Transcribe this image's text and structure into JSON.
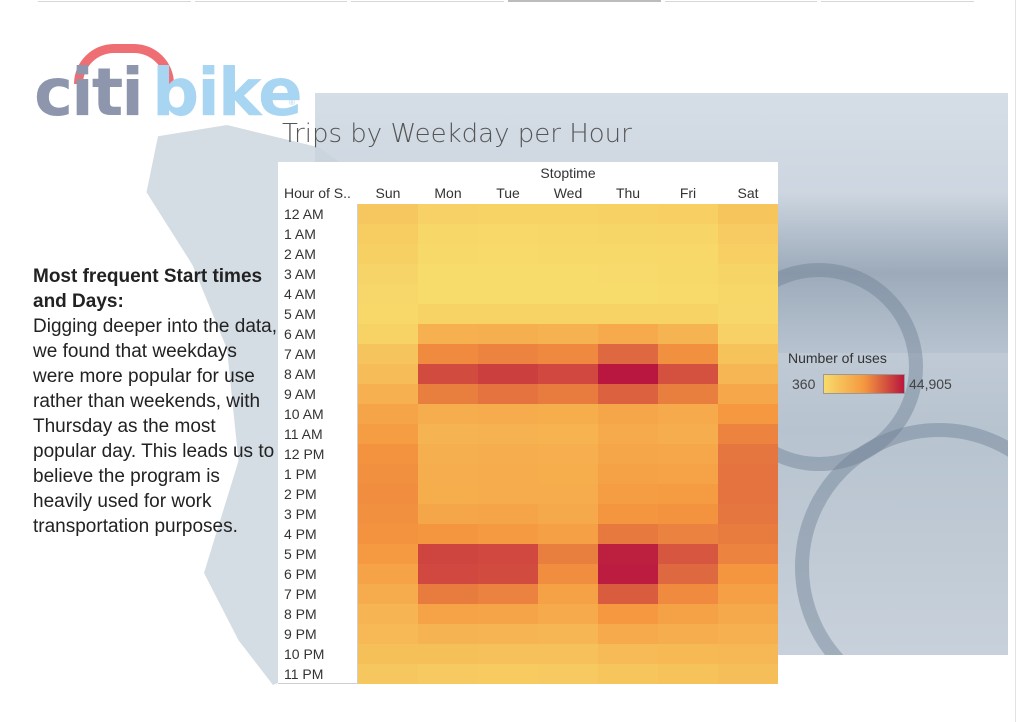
{
  "logo": {
    "citi": "citi",
    "bike": "bike",
    "reg": "®"
  },
  "sidebar": {
    "heading": "Most frequent Start times and Days:",
    "body": "Digging deeper into the data, we found that weekdays were more popular for use rather than weekends, with Thursday as the most popular day. This leads us to believe the program is heavily used for work transportation purposes."
  },
  "chart_data": {
    "type": "heatmap",
    "title": "Trips by Weekday per Hour",
    "column_header": "Stoptime",
    "row_header": "Hour of S..",
    "columns": [
      "Sun",
      "Mon",
      "Tue",
      "Wed",
      "Thu",
      "Fri",
      "Sat"
    ],
    "rows": [
      "12 AM",
      "1 AM",
      "2 AM",
      "3 AM",
      "4 AM",
      "5 AM",
      "6 AM",
      "7 AM",
      "8 AM",
      "9 AM",
      "10 AM",
      "11 AM",
      "12 PM",
      "1 PM",
      "2 PM",
      "3 PM",
      "4 PM",
      "5 PM",
      "6 PM",
      "7 PM",
      "8 PM",
      "9 PM",
      "10 PM",
      "11 PM"
    ],
    "values": [
      [
        7000,
        3600,
        3000,
        3400,
        3800,
        4400,
        7200
      ],
      [
        5400,
        1700,
        1500,
        1700,
        1900,
        2400,
        5600
      ],
      [
        4000,
        900,
        800,
        900,
        1000,
        1400,
        4200
      ],
      [
        2600,
        500,
        420,
        500,
        560,
        900,
        2800
      ],
      [
        1600,
        400,
        360,
        420,
        450,
        700,
        1800
      ],
      [
        1400,
        3400,
        3200,
        3300,
        3500,
        3200,
        1600
      ],
      [
        3400,
        14500,
        15000,
        14200,
        16500,
        13500,
        3600
      ],
      [
        8000,
        25000,
        26000,
        25200,
        31000,
        24000,
        8500
      ],
      [
        10500,
        36000,
        38000,
        36500,
        44905,
        35000,
        12500
      ],
      [
        14500,
        27000,
        29000,
        27500,
        32000,
        27000,
        17500
      ],
      [
        18500,
        15500,
        16000,
        15800,
        18000,
        16500,
        22500
      ],
      [
        21000,
        13500,
        14000,
        13800,
        16500,
        15500,
        26000
      ],
      [
        23500,
        15000,
        15500,
        15200,
        18000,
        17500,
        28500
      ],
      [
        24000,
        15500,
        16000,
        15800,
        19500,
        19000,
        29000
      ],
      [
        24500,
        15800,
        16200,
        16000,
        21000,
        21500,
        29000
      ],
      [
        24000,
        18000,
        18500,
        17000,
        23000,
        23500,
        28500
      ],
      [
        23500,
        23000,
        22000,
        20000,
        28000,
        26500,
        27500
      ],
      [
        22000,
        37000,
        36500,
        27000,
        43500,
        34000,
        26000
      ],
      [
        19000,
        36500,
        36000,
        24500,
        44000,
        31000,
        23000
      ],
      [
        16000,
        27500,
        26500,
        19500,
        33000,
        25000,
        20000
      ],
      [
        13000,
        19000,
        18500,
        16500,
        22500,
        19500,
        17000
      ],
      [
        11500,
        13500,
        13000,
        12500,
        16500,
        15500,
        14500
      ],
      [
        9500,
        9500,
        9200,
        9000,
        11000,
        11800,
        12000
      ],
      [
        7000,
        6000,
        5800,
        6000,
        7500,
        8800,
        10000
      ]
    ],
    "legend": {
      "title": "Number of uses",
      "min": 360,
      "max": 44905,
      "min_label": "360",
      "max_label": "44,905"
    },
    "colors": {
      "low": "#f7db6b",
      "mid": "#f5983f",
      "high": "#b9173f"
    }
  }
}
